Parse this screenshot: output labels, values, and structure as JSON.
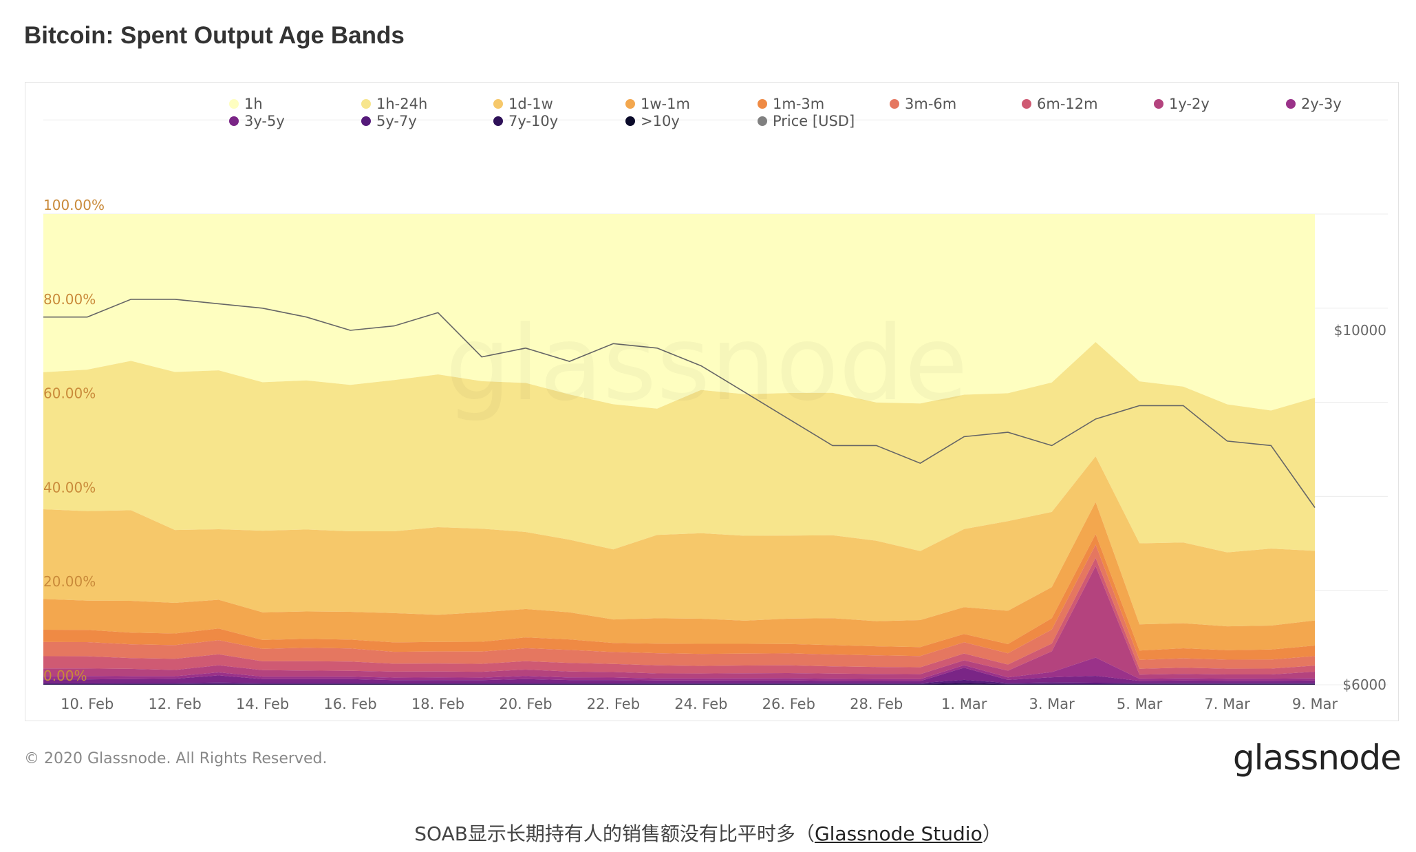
{
  "title": "Bitcoin: Spent Output Age Bands",
  "footer": {
    "copyright": "© 2020 Glassnode. All Rights Reserved.",
    "logo": "glassnode",
    "watermark": "glassnode"
  },
  "caption": {
    "text": "SOAB显示长期持有人的销售额没有比平时多（",
    "link": "Glassnode Studio",
    "tail": "）"
  },
  "chart_data": {
    "type": "area",
    "stacked": true,
    "percent": true,
    "title": "Bitcoin: Spent Output Age Bands",
    "x": [
      "2020-02-09",
      "2020-02-10",
      "2020-02-11",
      "2020-02-12",
      "2020-02-13",
      "2020-02-14",
      "2020-02-15",
      "2020-02-16",
      "2020-02-17",
      "2020-02-18",
      "2020-02-19",
      "2020-02-20",
      "2020-02-21",
      "2020-02-22",
      "2020-02-23",
      "2020-02-24",
      "2020-02-25",
      "2020-02-26",
      "2020-02-27",
      "2020-02-28",
      "2020-02-29",
      "2020-03-01",
      "2020-03-02",
      "2020-03-03",
      "2020-03-04",
      "2020-03-05",
      "2020-03-06",
      "2020-03-07",
      "2020-03-08",
      "2020-03-09"
    ],
    "x_ticks": [
      "10. Feb",
      "12. Feb",
      "14. Feb",
      "16. Feb",
      "18. Feb",
      "20. Feb",
      "22. Feb",
      "24. Feb",
      "26. Feb",
      "28. Feb",
      "1. Mar",
      "3. Mar",
      "5. Mar",
      "7. Mar",
      "9. Mar"
    ],
    "y_ticks": [
      "0.00%",
      "20.00%",
      "40.00%",
      "60.00%",
      "80.00%",
      "100.00%"
    ],
    "ylim": [
      0,
      100
    ],
    "y2_ticks": [
      "$6000",
      "$10000"
    ],
    "y2lim": [
      6000,
      10000
    ],
    "series": [
      {
        "name": "1h",
        "color": "#fefec0",
        "values": [
          33.5,
          33,
          30,
          32.5,
          31,
          34,
          33.5,
          35,
          33.5,
          32,
          34,
          34,
          36,
          38,
          38.5,
          35,
          35,
          34.5,
          34.5,
          37.5,
          38.5,
          37,
          35,
          32.5,
          28,
          32,
          31,
          36,
          37,
          33
        ]
      },
      {
        "name": "1h-24h",
        "color": "#f7e58c",
        "values": [
          29,
          30,
          30.5,
          32.5,
          31.5,
          30,
          30,
          30,
          30.5,
          30.5,
          30,
          30,
          29,
          29,
          25,
          28.5,
          27.5,
          27.5,
          27.5,
          27.5,
          30,
          27.5,
          25,
          25,
          25,
          31,
          28,
          28,
          26,
          27.5
        ]
      },
      {
        "name": "1d-1w",
        "color": "#f6c86a",
        "values": [
          19,
          19,
          18.5,
          15,
          14,
          16.5,
          16.5,
          16.5,
          16.5,
          17.5,
          17,
          15.5,
          14.5,
          14,
          16.5,
          17,
          16.5,
          16,
          16,
          16,
          14,
          16,
          17.5,
          14.5,
          10,
          15.5,
          14.5,
          14,
          14.5,
          12.5
        ]
      },
      {
        "name": "1w-1m",
        "color": "#f3a74e",
        "values": [
          6.5,
          6.2,
          6.5,
          6.3,
          5.7,
          5.6,
          5.5,
          5.7,
          5.9,
          5.4,
          6,
          5.7,
          5.4,
          4.7,
          5,
          5,
          4.5,
          4.9,
          5.2,
          5,
          5.5,
          5.5,
          6.5,
          6,
          7,
          5,
          4.5,
          4.5,
          4.5,
          4.5
        ]
      },
      {
        "name": "1m-3m",
        "color": "#ef8a44",
        "values": [
          2.6,
          2.6,
          2.4,
          2.4,
          2.3,
          1.8,
          1.8,
          1.8,
          1.9,
          1.9,
          2,
          2.2,
          2.1,
          1.8,
          1.9,
          2,
          1.9,
          1.8,
          1.8,
          1.8,
          1.8,
          1.7,
          1.8,
          2.2,
          2.3,
          1.8,
          1.8,
          1.8,
          1.9,
          1.9
        ]
      },
      {
        "name": "3m-6m",
        "color": "#e57760",
        "values": [
          3,
          3,
          2.8,
          2.8,
          2.8,
          2.5,
          2.7,
          2.7,
          2.4,
          2.4,
          2.5,
          2.6,
          2.6,
          2.4,
          2.4,
          2.4,
          2.3,
          2.3,
          2.3,
          2.3,
          2.3,
          2.3,
          2.2,
          2.7,
          2.9,
          1.7,
          1.7,
          1.7,
          1.7,
          1.7
        ]
      },
      {
        "name": "6m-12m",
        "color": "#cf5a73",
        "values": [
          2.6,
          2.6,
          2.2,
          2.3,
          2.2,
          1.8,
          1.9,
          1.9,
          1.6,
          1.6,
          1.6,
          1.7,
          1.7,
          1.6,
          1.6,
          1.5,
          1.5,
          1.5,
          1.4,
          1.4,
          1.4,
          1.4,
          1.2,
          1.5,
          1.8,
          1.1,
          1.1,
          1.1,
          1.1,
          1.1
        ]
      },
      {
        "name": "1y-2y",
        "color": "#b4437e",
        "values": [
          1.6,
          1.6,
          1.5,
          1.3,
          1.4,
          1.3,
          1.2,
          1.2,
          1.2,
          1.2,
          1.2,
          1.3,
          1.2,
          1.1,
          1,
          1,
          1,
          1,
          1,
          1,
          1,
          1,
          1.3,
          4,
          20,
          0.8,
          0.8,
          0.8,
          0.8,
          1.2
        ]
      },
      {
        "name": "2y-3y",
        "color": "#9a3289",
        "values": [
          0.7,
          0.7,
          0.6,
          0.5,
          0.6,
          0.5,
          0.5,
          0.5,
          0.5,
          0.5,
          0.5,
          0.6,
          0.5,
          0.5,
          0.4,
          0.4,
          0.4,
          0.4,
          0.4,
          0.4,
          0.4,
          0.5,
          0.5,
          1,
          4,
          0.4,
          0.4,
          0.4,
          0.4,
          0.4
        ]
      },
      {
        "name": "3y-5y",
        "color": "#7a2586",
        "values": [
          0.8,
          0.8,
          0.8,
          0.9,
          1.4,
          0.8,
          0.8,
          0.8,
          0.6,
          0.6,
          0.6,
          0.8,
          0.6,
          0.6,
          0.5,
          0.5,
          0.5,
          0.5,
          0.4,
          0.4,
          0.4,
          2.5,
          0.6,
          1,
          1.5,
          0.4,
          0.4,
          0.4,
          0.4,
          0.4
        ]
      },
      {
        "name": "5y-7y",
        "color": "#551a7a",
        "values": [
          0.2,
          0.2,
          0.2,
          0.2,
          0.3,
          0.2,
          0.2,
          0.2,
          0.2,
          0.2,
          0.2,
          0.2,
          0.2,
          0.2,
          0.2,
          0.2,
          0.2,
          0.2,
          0.2,
          0.2,
          0.2,
          0.6,
          0.2,
          0.3,
          0.3,
          0.2,
          0.2,
          0.2,
          0.2,
          0.2
        ]
      },
      {
        "name": "7y-10y",
        "color": "#2e1158",
        "values": [
          0.1,
          0.1,
          0.1,
          0.1,
          0.1,
          0.1,
          0.1,
          0.1,
          0.1,
          0.1,
          0.1,
          0.1,
          0.1,
          0.1,
          0.1,
          0.1,
          0.1,
          0.1,
          0.1,
          0.1,
          0.1,
          0.3,
          0.1,
          0.1,
          0.1,
          0.1,
          0.1,
          0.1,
          0.1,
          0.1
        ]
      },
      {
        "name": ">10y",
        "color": "#0a0a2a",
        "values": [
          0.05,
          0.05,
          0.05,
          0.05,
          0.05,
          0.05,
          0.05,
          0.05,
          0.05,
          0.05,
          0.05,
          0.05,
          0.05,
          0.05,
          0.05,
          0.05,
          0.05,
          0.05,
          0.05,
          0.05,
          0.05,
          0.1,
          0.05,
          0.05,
          0.05,
          0.05,
          0.05,
          0.05,
          0.05,
          0.05
        ]
      }
    ],
    "price": {
      "name": "Price [USD]",
      "color": "#666666",
      "values": [
        10150,
        10150,
        10350,
        10350,
        10300,
        10250,
        10150,
        10000,
        10050,
        10200,
        9700,
        9800,
        9650,
        9850,
        9800,
        9600,
        9300,
        9000,
        8700,
        8700,
        8500,
        8800,
        8850,
        8700,
        9000,
        9150,
        9150,
        8750,
        8700,
        8000
      ]
    },
    "legend_position": "top",
    "grid": true
  }
}
